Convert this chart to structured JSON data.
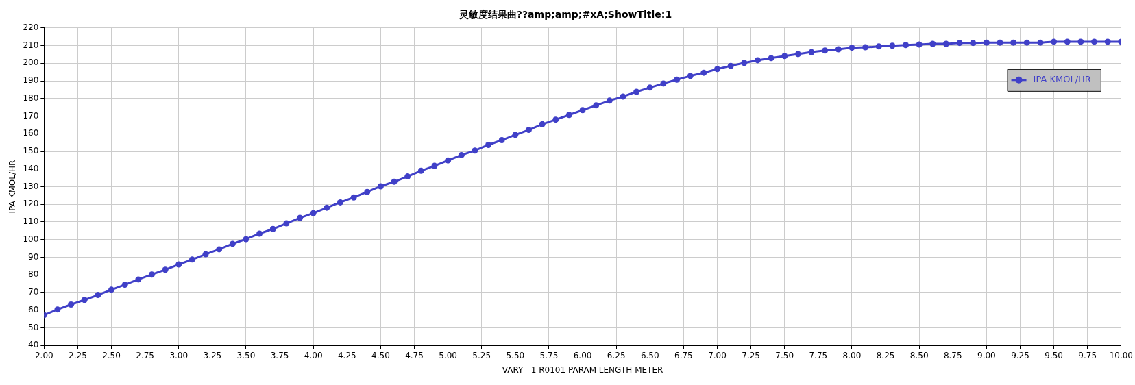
{
  "chart_data": {
    "type": "line",
    "title": "灵敏度结果曲??amp;amp;#xA;ShowTitle:1",
    "xlabel": "VARY   1 R0101 PARAM LENGTH METER",
    "ylabel": "IPA KMOL/HR",
    "x": [
      2.0,
      2.1,
      2.2,
      2.3,
      2.4,
      2.5,
      2.6,
      2.7,
      2.8,
      2.9,
      3.0,
      3.1,
      3.2,
      3.3,
      3.4,
      3.5,
      3.6,
      3.7,
      3.8,
      3.9,
      4.0,
      4.1,
      4.2,
      4.3,
      4.4,
      4.5,
      4.6,
      4.7,
      4.8,
      4.9,
      5.0,
      5.1,
      5.2,
      5.3,
      5.4,
      5.5,
      5.6,
      5.7,
      5.8,
      5.9,
      6.0,
      6.1,
      6.2,
      6.3,
      6.4,
      6.5,
      6.6,
      6.7,
      6.8,
      6.9,
      7.0,
      7.1,
      7.2,
      7.3,
      7.4,
      7.5,
      7.6,
      7.7,
      7.8,
      7.9,
      8.0,
      8.1,
      8.2,
      8.3,
      8.4,
      8.5,
      8.6,
      8.7,
      8.8,
      8.9,
      9.0,
      9.1,
      9.2,
      9.3,
      9.4,
      9.5,
      9.6,
      9.7,
      9.8,
      9.9,
      10.0
    ],
    "series": [
      {
        "name": "IPA KMOL/HR",
        "color": "#4040c8",
        "values": [
          57.2,
          60.4,
          63.2,
          65.8,
          68.6,
          71.6,
          74.4,
          77.4,
          80.2,
          82.9,
          85.9,
          88.7,
          91.7,
          94.5,
          97.6,
          100.3,
          103.4,
          106.0,
          109.2,
          112.3,
          115.0,
          118.1,
          121.1,
          123.9,
          127.0,
          130.2,
          132.8,
          135.8,
          139.0,
          141.8,
          144.9,
          147.9,
          150.5,
          153.7,
          156.4,
          159.4,
          162.2,
          165.4,
          168.0,
          170.7,
          173.4,
          176.1,
          178.8,
          181.1,
          183.8,
          186.2,
          188.5,
          190.7,
          192.8,
          194.6,
          196.7,
          198.5,
          200.2,
          201.7,
          202.9,
          204.1,
          205.2,
          206.3,
          207.2,
          207.9,
          208.8,
          209.0,
          209.5,
          209.9,
          210.3,
          210.6,
          211.0,
          211.0,
          211.5,
          211.5,
          211.7,
          211.7,
          211.7,
          211.7,
          211.7,
          212.2,
          212.2,
          212.2,
          212.2,
          212.2,
          212.2
        ]
      }
    ],
    "xlim": [
      2,
      10
    ],
    "xticks": [
      {
        "value": 2,
        "label": "2.00"
      },
      {
        "value": 2.25,
        "label": "2.25"
      },
      {
        "value": 2.5,
        "label": "2.50"
      },
      {
        "value": 2.75,
        "label": "2.75"
      },
      {
        "value": 3,
        "label": "3.00"
      },
      {
        "value": 3.25,
        "label": "3.25"
      },
      {
        "value": 3.5,
        "label": "3.50"
      },
      {
        "value": 3.75,
        "label": "3.75"
      },
      {
        "value": 4,
        "label": "4.00"
      },
      {
        "value": 4.25,
        "label": "4.25"
      },
      {
        "value": 4.5,
        "label": "4.50"
      },
      {
        "value": 4.75,
        "label": "4.75"
      },
      {
        "value": 5,
        "label": "5.00"
      },
      {
        "value": 5.25,
        "label": "5.25"
      },
      {
        "value": 5.5,
        "label": "5.50"
      },
      {
        "value": 5.75,
        "label": "5.75"
      },
      {
        "value": 6,
        "label": "6.00"
      },
      {
        "value": 6.25,
        "label": "6.25"
      },
      {
        "value": 6.5,
        "label": "6.50"
      },
      {
        "value": 6.75,
        "label": "6.75"
      },
      {
        "value": 7,
        "label": "7.00"
      },
      {
        "value": 7.25,
        "label": "7.25"
      },
      {
        "value": 7.5,
        "label": "7.50"
      },
      {
        "value": 7.75,
        "label": "7.75"
      },
      {
        "value": 8,
        "label": "8.00"
      },
      {
        "value": 8.25,
        "label": "8.25"
      },
      {
        "value": 8.5,
        "label": "8.50"
      },
      {
        "value": 8.75,
        "label": "8.75"
      },
      {
        "value": 9,
        "label": "9.00"
      },
      {
        "value": 9.25,
        "label": "9.25"
      },
      {
        "value": 9.5,
        "label": "9.50"
      },
      {
        "value": 9.75,
        "label": "9.75"
      },
      {
        "value": 10,
        "label": "10.00"
      }
    ],
    "ylim": [
      40,
      220
    ],
    "yticks": [
      40,
      50,
      60,
      70,
      80,
      90,
      100,
      110,
      120,
      130,
      140,
      150,
      160,
      170,
      180,
      190,
      200,
      210,
      220
    ],
    "grid": true,
    "legend": "top right",
    "marker": "circle",
    "line_style": "solid"
  }
}
